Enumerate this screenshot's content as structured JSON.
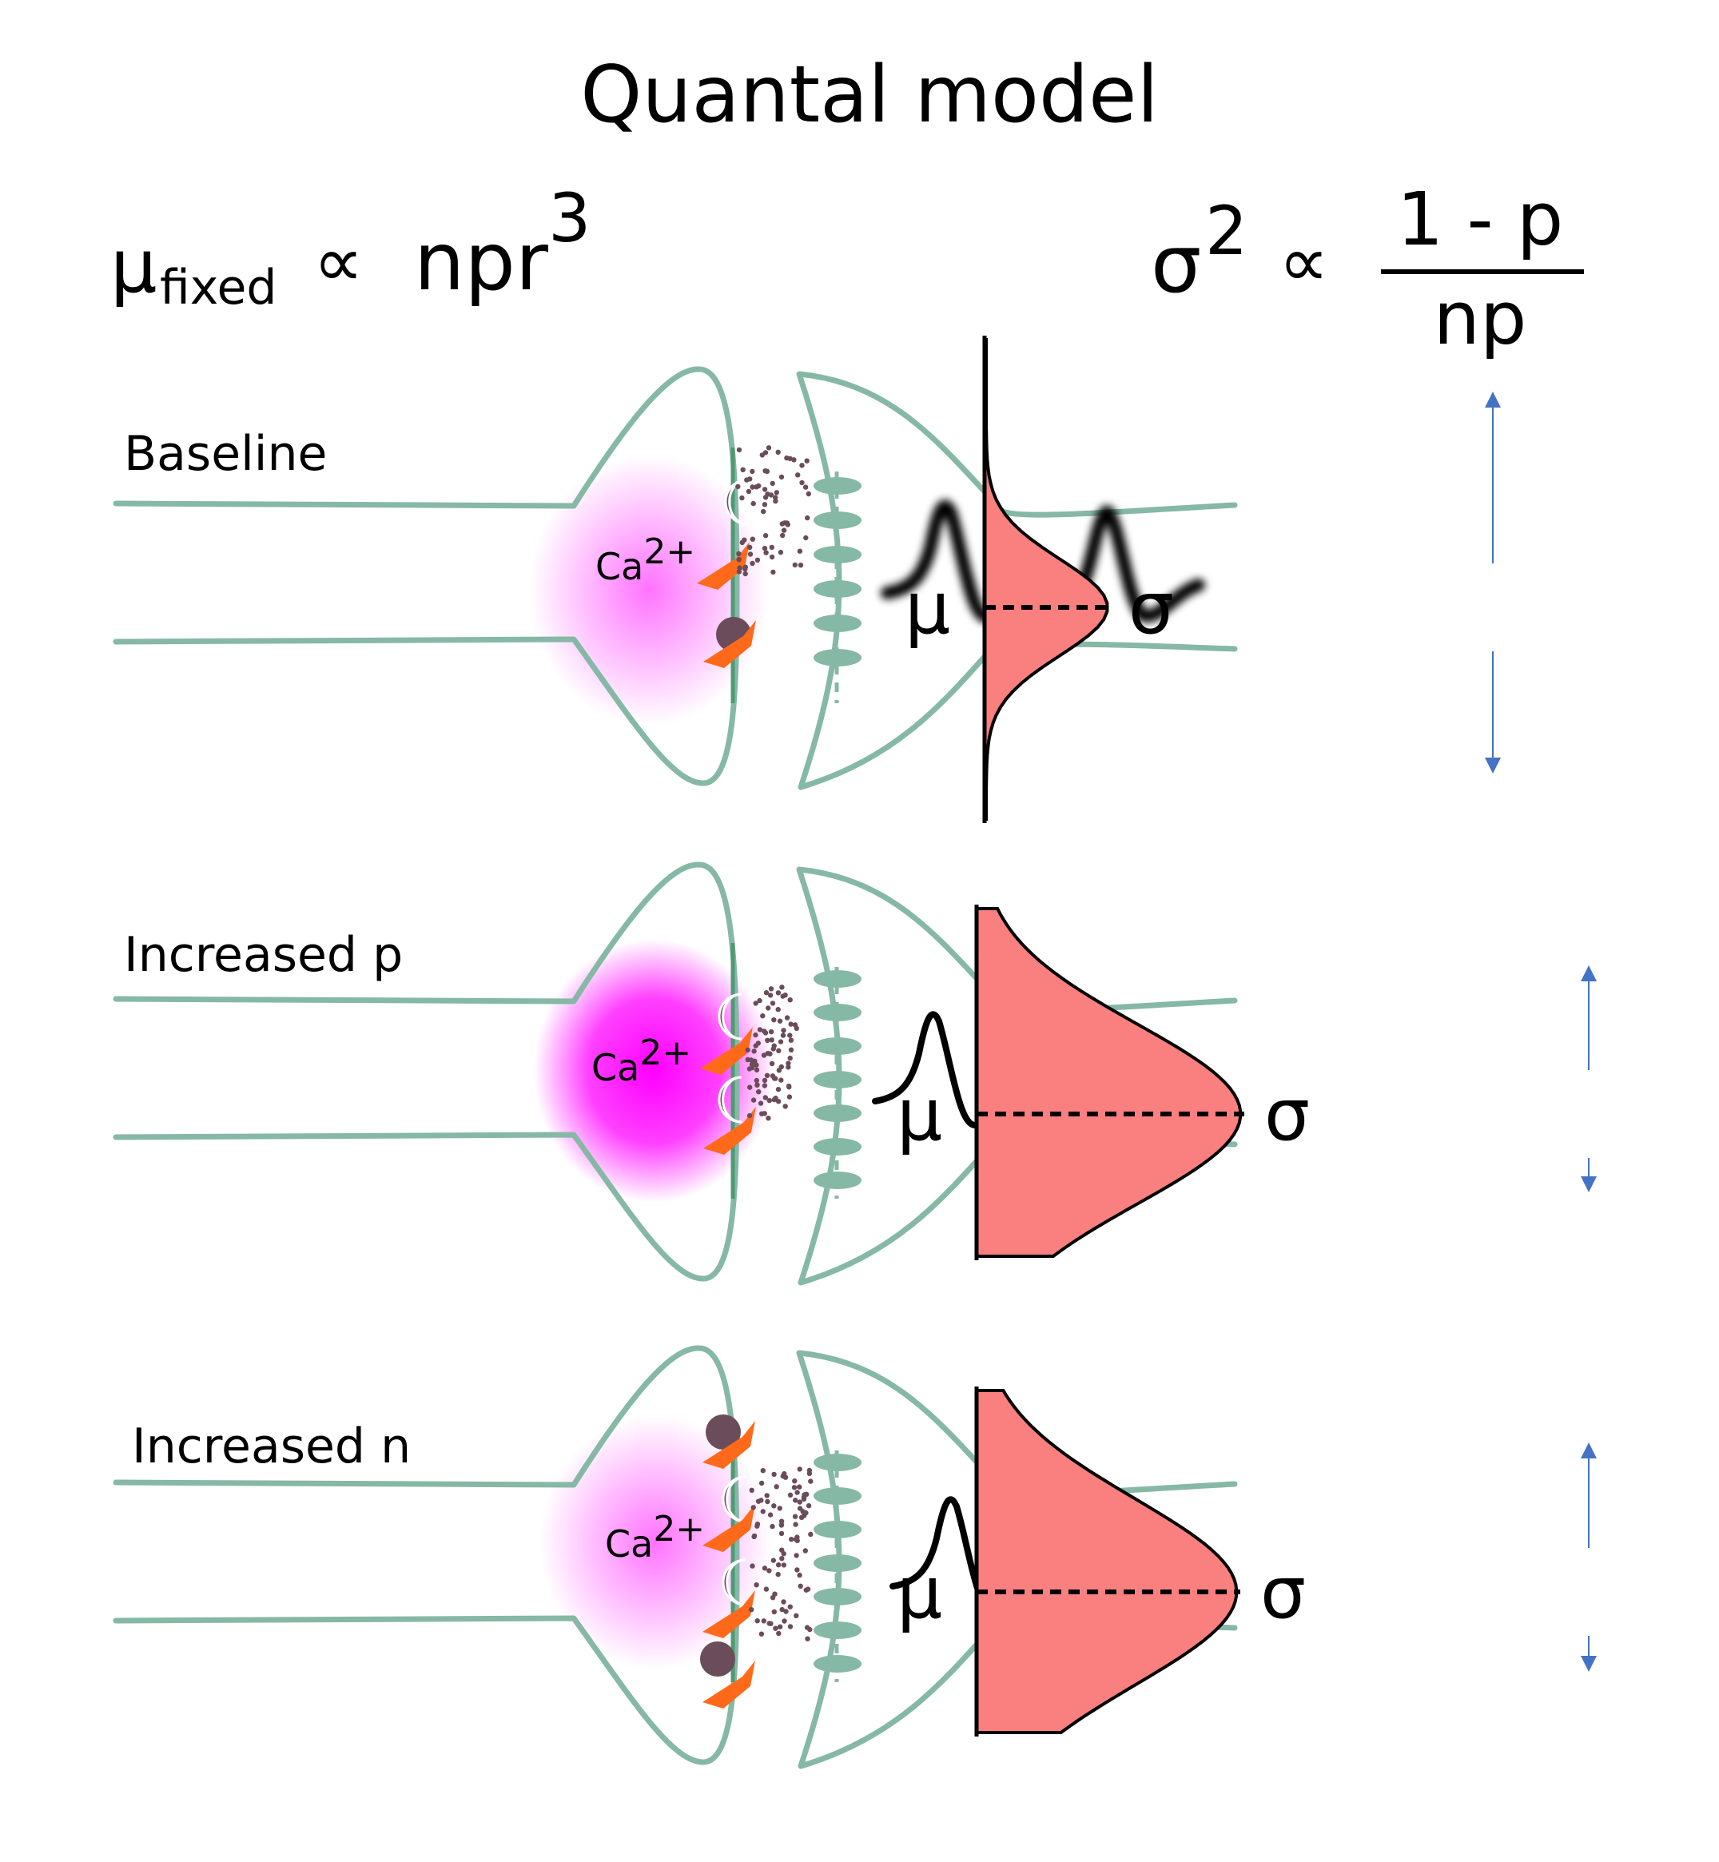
{
  "title": "Quantal model",
  "formula_mean": {
    "symbol": "μ",
    "subscript": "fixed",
    "proportional": "∝",
    "base": "npr",
    "exponent": "3"
  },
  "formula_variance": {
    "symbol": "σ",
    "exponent": "2",
    "proportional": "∝",
    "numerator": "1 - p",
    "denominator": "np"
  },
  "ion": {
    "base": "Ca",
    "charge": "2+"
  },
  "panels": [
    {
      "label": "Baseline",
      "mu": "μ",
      "sigma": "σ",
      "trace_blurred": true
    },
    {
      "label": "Increased p",
      "mu": "μ",
      "sigma": "σ",
      "trace_blurred": false
    },
    {
      "label": "Increased n",
      "mu": "μ",
      "sigma": "σ",
      "trace_blurred": false
    }
  ],
  "colors": {
    "membrane": "#86b8a6",
    "calcium_glow": "#ff00ff",
    "vesicle": "#6b4c5a",
    "channel": "#ff6a1a",
    "distribution_fill": "#fa8080",
    "arrow": "#4472c4"
  }
}
